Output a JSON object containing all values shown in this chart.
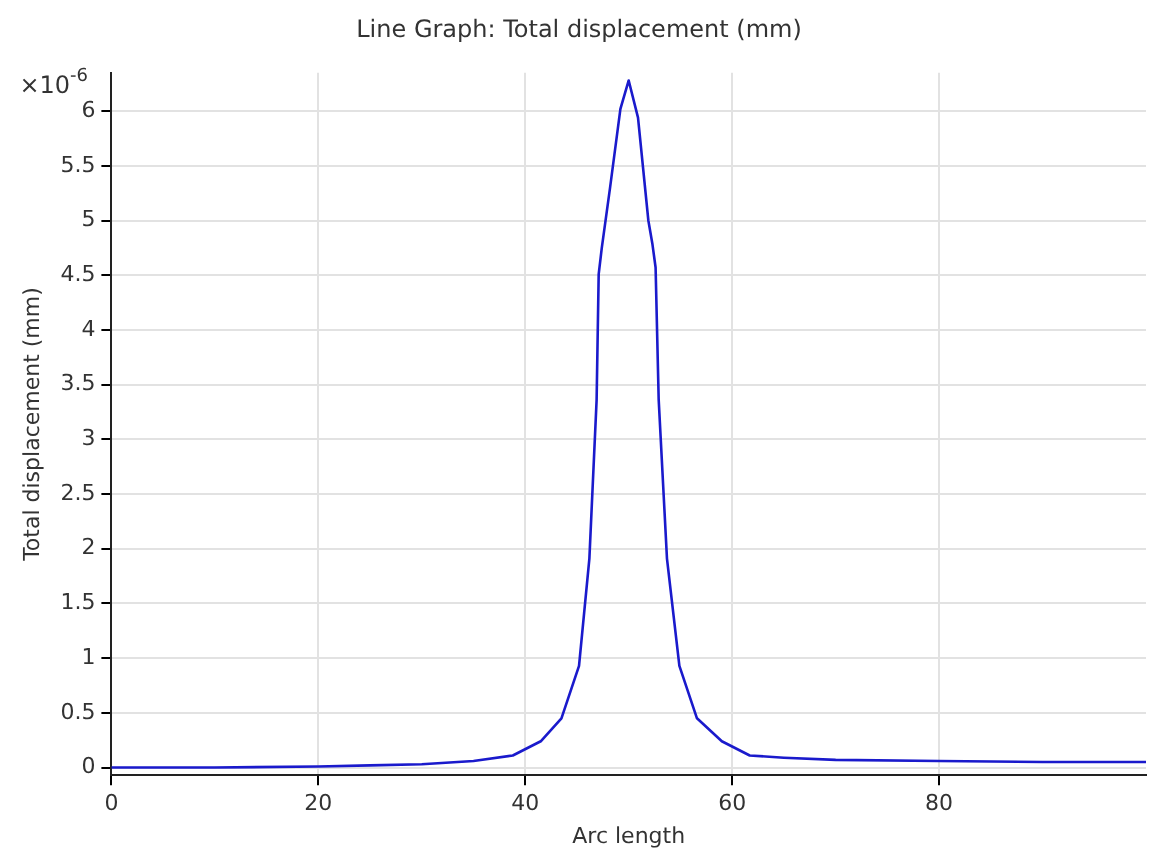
{
  "chart_data": {
    "type": "line",
    "title": "Line Graph: Total displacement (mm)",
    "xlabel": "Arc length",
    "ylabel": "Total displacement (mm)",
    "annotations": [
      "×10$^{-6}$"
    ],
    "xlim": [
      0,
      100
    ],
    "xticks": [
      0,
      20,
      40,
      60,
      80
    ],
    "ylim": [
      -0.07,
      6.35
    ],
    "yticks": [
      0,
      0.5,
      1,
      1.5,
      2,
      2.5,
      3,
      3.5,
      4,
      4.5,
      5,
      5.5,
      6
    ],
    "grid": true,
    "legend": false,
    "marker": "none",
    "line_style": "solid",
    "series": [
      {
        "color": "#1a1acc",
        "x": [
          0,
          10,
          20,
          25,
          30,
          35,
          38.8,
          41.5,
          43.5,
          45.2,
          46.2,
          46.9,
          47.1,
          47.4,
          48.2,
          49.2,
          50,
          50.9,
          51.9,
          52.3,
          52.6,
          52.9,
          53.7,
          54.9,
          56.6,
          59,
          61.7,
          65,
          70,
          80,
          90,
          100
        ],
        "values": [
          0,
          0,
          0.01,
          0.02,
          0.03,
          0.06,
          0.11,
          0.24,
          0.45,
          0.93,
          1.91,
          3.36,
          4.51,
          4.75,
          5.3,
          6.02,
          6.28,
          5.94,
          5.0,
          4.78,
          4.57,
          3.36,
          1.91,
          0.93,
          0.45,
          0.24,
          0.11,
          0.09,
          0.07,
          0.06,
          0.05,
          0.05
        ]
      }
    ]
  }
}
